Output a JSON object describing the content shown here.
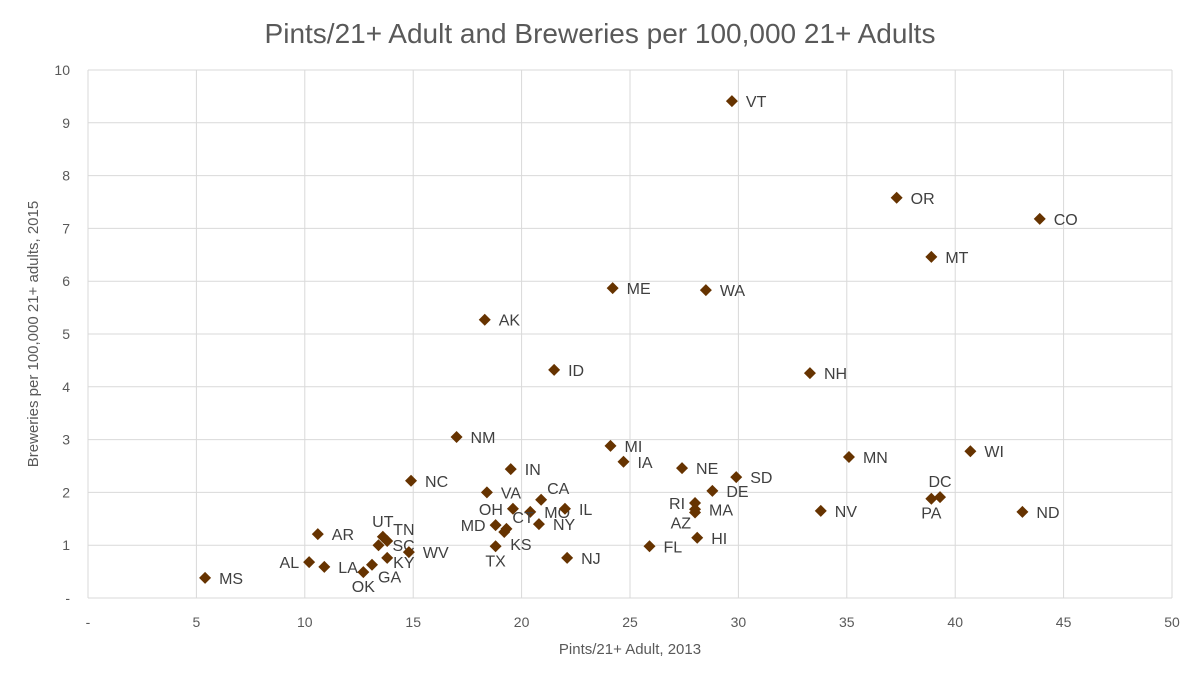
{
  "chart_data": {
    "type": "scatter",
    "title": "Pints/21+ Adult and Breweries per 100,000 21+ Adults",
    "xlabel": "Pints/21+ Adult, 2013",
    "ylabel": "Breweries per 100,000 21+ adults, 2015",
    "xlim": [
      0,
      50
    ],
    "ylim": [
      0,
      10
    ],
    "xticks": [
      0,
      5,
      10,
      15,
      20,
      25,
      30,
      35,
      40,
      45,
      50
    ],
    "xtick_labels": [
      "-",
      "5",
      "10",
      "15",
      "20",
      "25",
      "30",
      "35",
      "40",
      "45",
      "50"
    ],
    "yticks": [
      0,
      1,
      2,
      3,
      4,
      5,
      6,
      7,
      8,
      9,
      10
    ],
    "ytick_labels": [
      "-",
      "1",
      "2",
      "3",
      "4",
      "5",
      "6",
      "7",
      "8",
      "9",
      "10"
    ],
    "grid": true,
    "marker": "diamond",
    "marker_color": "#663300",
    "points": [
      {
        "label": "MS",
        "x": 5.4,
        "y": 0.38,
        "pos": "right"
      },
      {
        "label": "AL",
        "x": 10.2,
        "y": 0.68,
        "pos": "left"
      },
      {
        "label": "LA",
        "x": 10.9,
        "y": 0.59,
        "pos": "right"
      },
      {
        "label": "OK",
        "x": 12.7,
        "y": 0.49,
        "pos": "below"
      },
      {
        "label": "GA",
        "x": 13.1,
        "y": 0.63,
        "pos": "below-right"
      },
      {
        "label": "KY",
        "x": 13.8,
        "y": 0.76,
        "pos": "right-low"
      },
      {
        "label": "SC",
        "x": 13.4,
        "y": 1.0,
        "pos": "right"
      },
      {
        "label": "TN",
        "x": 13.8,
        "y": 1.08,
        "pos": "above-right"
      },
      {
        "label": "UT",
        "x": 13.6,
        "y": 1.16,
        "pos": "above"
      },
      {
        "label": "WV",
        "x": 14.8,
        "y": 0.87,
        "pos": "right"
      },
      {
        "label": "AR",
        "x": 10.6,
        "y": 1.21,
        "pos": "right"
      },
      {
        "label": "NC",
        "x": 14.9,
        "y": 2.22,
        "pos": "right"
      },
      {
        "label": "NM",
        "x": 17.0,
        "y": 3.05,
        "pos": "right"
      },
      {
        "label": "IN",
        "x": 19.5,
        "y": 2.44,
        "pos": "right"
      },
      {
        "label": "VA",
        "x": 18.4,
        "y": 2.0,
        "pos": "right"
      },
      {
        "label": "CA",
        "x": 20.9,
        "y": 1.86,
        "pos": "above-right"
      },
      {
        "label": "OH",
        "x": 19.6,
        "y": 1.69,
        "pos": "left"
      },
      {
        "label": "MO",
        "x": 20.4,
        "y": 1.63,
        "pos": "right"
      },
      {
        "label": "IL",
        "x": 22.0,
        "y": 1.69,
        "pos": "right"
      },
      {
        "label": "MD",
        "x": 18.8,
        "y": 1.38,
        "pos": "left"
      },
      {
        "label": "CT",
        "x": 19.3,
        "y": 1.31,
        "pos": "above-right"
      },
      {
        "label": "KS",
        "x": 19.2,
        "y": 1.25,
        "pos": "below-right"
      },
      {
        "label": "NY",
        "x": 20.8,
        "y": 1.4,
        "pos": "right"
      },
      {
        "label": "TX",
        "x": 18.8,
        "y": 0.98,
        "pos": "below"
      },
      {
        "label": "NJ",
        "x": 22.1,
        "y": 0.76,
        "pos": "right"
      },
      {
        "label": "AK",
        "x": 18.3,
        "y": 5.27,
        "pos": "right"
      },
      {
        "label": "ID",
        "x": 21.5,
        "y": 4.32,
        "pos": "right"
      },
      {
        "label": "ME",
        "x": 24.2,
        "y": 5.87,
        "pos": "right"
      },
      {
        "label": "WA",
        "x": 28.5,
        "y": 5.83,
        "pos": "right"
      },
      {
        "label": "VT",
        "x": 29.7,
        "y": 9.41,
        "pos": "right"
      },
      {
        "label": "OR",
        "x": 37.3,
        "y": 7.58,
        "pos": "right"
      },
      {
        "label": "CO",
        "x": 43.9,
        "y": 7.18,
        "pos": "right"
      },
      {
        "label": "MT",
        "x": 38.9,
        "y": 6.46,
        "pos": "right"
      },
      {
        "label": "NH",
        "x": 33.3,
        "y": 4.26,
        "pos": "right"
      },
      {
        "label": "MI",
        "x": 24.1,
        "y": 2.88,
        "pos": "right"
      },
      {
        "label": "IA",
        "x": 24.7,
        "y": 2.58,
        "pos": "right"
      },
      {
        "label": "NE",
        "x": 27.4,
        "y": 2.46,
        "pos": "right"
      },
      {
        "label": "SD",
        "x": 29.9,
        "y": 2.29,
        "pos": "right"
      },
      {
        "label": "DE",
        "x": 28.8,
        "y": 2.03,
        "pos": "right"
      },
      {
        "label": "RI",
        "x": 28.0,
        "y": 1.8,
        "pos": "left"
      },
      {
        "label": "MA",
        "x": 28.0,
        "y": 1.68,
        "pos": "right"
      },
      {
        "label": "AZ",
        "x": 28.0,
        "y": 1.62,
        "pos": "below-left"
      },
      {
        "label": "HI",
        "x": 28.1,
        "y": 1.14,
        "pos": "right"
      },
      {
        "label": "FL",
        "x": 25.9,
        "y": 0.98,
        "pos": "right"
      },
      {
        "label": "NV",
        "x": 33.8,
        "y": 1.65,
        "pos": "right"
      },
      {
        "label": "MN",
        "x": 35.1,
        "y": 2.67,
        "pos": "right"
      },
      {
        "label": "WI",
        "x": 40.7,
        "y": 2.78,
        "pos": "right"
      },
      {
        "label": "DC",
        "x": 39.3,
        "y": 1.91,
        "pos": "above"
      },
      {
        "label": "PA",
        "x": 38.9,
        "y": 1.88,
        "pos": "below"
      },
      {
        "label": "ND",
        "x": 43.1,
        "y": 1.63,
        "pos": "right"
      }
    ]
  }
}
